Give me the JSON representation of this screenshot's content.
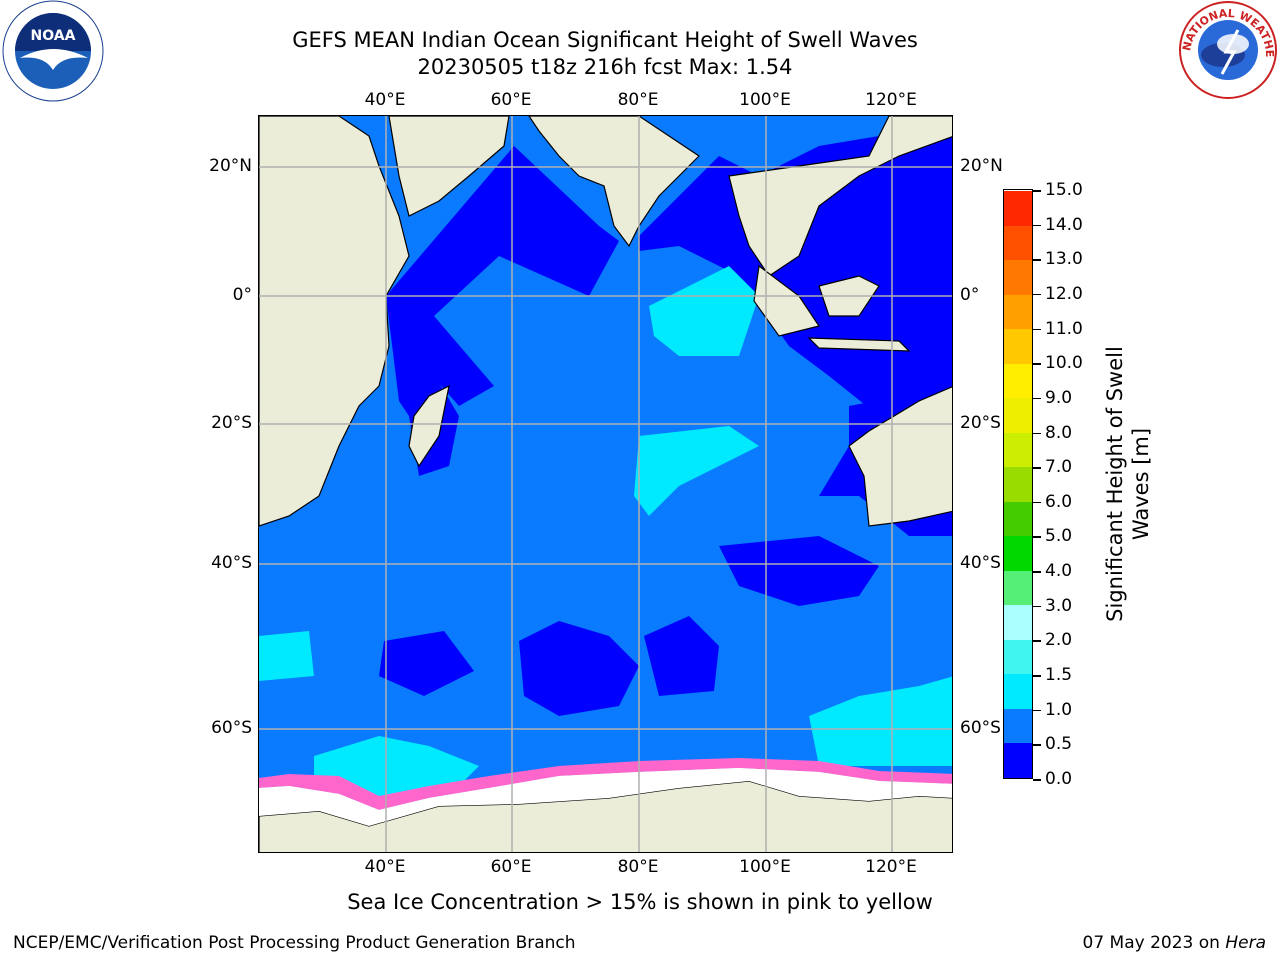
{
  "title_line1": "GEFS MEAN Indian Ocean Significant Height of Swell Waves",
  "title_line2": "20230505 t18z 216h fcst   Max: 1.54",
  "lon_labels": [
    "40°E",
    "60°E",
    "80°E",
    "100°E",
    "120°E"
  ],
  "lat_labels": [
    "20°N",
    "0°",
    "20°S",
    "40°S",
    "60°S"
  ],
  "colorbar": {
    "title": "Significant Height of Swell Waves [m]",
    "ticks": [
      "0.0",
      "0.5",
      "1.0",
      "1.5",
      "2.0",
      "3.0",
      "4.0",
      "5.0",
      "6.0",
      "7.0",
      "8.0",
      "9.0",
      "10.0",
      "11.0",
      "12.0",
      "13.0",
      "14.0",
      "15.0"
    ],
    "colors": [
      "#0000ff",
      "#0a7aff",
      "#00eaff",
      "#40f5f0",
      "#aaffff",
      "#55ee77",
      "#00d800",
      "#44cc00",
      "#99dd00",
      "#ccee00",
      "#eeee00",
      "#ffee00",
      "#ffc800",
      "#ffa000",
      "#ff7800",
      "#ff5000",
      "#ff2800"
    ]
  },
  "footnote": "Sea Ice Concentration > 15% is shown in pink to yellow",
  "credit": "NCEP/EMC/Verification Post Processing Product Generation Branch",
  "date": "07 May 2023 on",
  "date_machine": "Hera",
  "logos": {
    "noaa_text": "NOAA",
    "nws_text": "NATIONAL WEATHER SERVICE"
  },
  "colors": {
    "land": "#ecedd9",
    "ocean_swell_0": "#0000ff",
    "ocean_swell_05": "#0a7aff",
    "ocean_swell_1": "#00eaff",
    "sea_ice": "#ff66cc",
    "grid": "#b0b0b0"
  }
}
